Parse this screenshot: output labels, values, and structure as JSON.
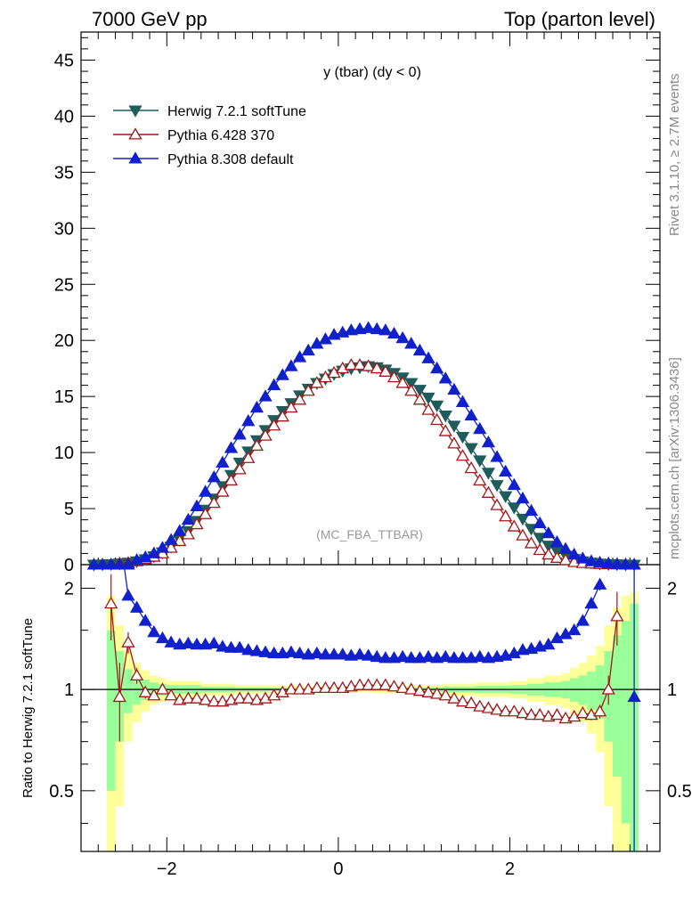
{
  "header": {
    "left": "7000 GeV pp",
    "right": "Top (parton level)"
  },
  "side_labels": {
    "rivet": "Rivet 3.1.10, ≥ 2.7M events",
    "mcplots": "mcplots.cern.ch [arXiv:1306.3436]"
  },
  "chart_data": {
    "type": "line",
    "title": "y (tbar) (dy < 0)",
    "annotation": "(MC_FBA_TTBAR)",
    "xlim": [
      -3.0,
      3.75
    ],
    "xticks": [
      -2,
      0,
      2
    ],
    "xtick_labels": [
      "−2",
      "0",
      "2"
    ],
    "main": {
      "ylim": [
        0,
        47.5
      ],
      "yticks": [
        0,
        5,
        10,
        15,
        20,
        25,
        30,
        35,
        40,
        45
      ],
      "ytick_labels": [
        "0",
        "5",
        "10",
        "15",
        "20",
        "25",
        "30",
        "35",
        "40",
        "45"
      ]
    },
    "ratio": {
      "ylabel": "Ratio to Herwig 7.2.1 softTune",
      "ylim": [
        0.33,
        2.35
      ],
      "log": true,
      "yticks": [
        0.5,
        1,
        2
      ],
      "ytick_labels": [
        "0.5",
        "1",
        "2"
      ],
      "band_edges": [
        -2.7,
        -2.6,
        -2.5,
        -2.4,
        -2.3,
        -2.2,
        -2.1,
        -2.0,
        -1.6,
        -1.2,
        -0.8,
        -0.4,
        0.0,
        0.4,
        0.8,
        1.2,
        1.6,
        2.0,
        2.2,
        2.4,
        2.6,
        2.7,
        2.8,
        2.9,
        3.0,
        3.1,
        3.2,
        3.3,
        3.4,
        3.5
      ],
      "band_inner": [
        0.5,
        0.3,
        0.15,
        0.1,
        0.07,
        0.05,
        0.04,
        0.03,
        0.02,
        0.015,
        0.012,
        0.01,
        0.01,
        0.012,
        0.015,
        0.02,
        0.025,
        0.03,
        0.04,
        0.05,
        0.06,
        0.08,
        0.1,
        0.13,
        0.18,
        0.3,
        0.45,
        0.6,
        0.8
      ],
      "band_outer": [
        0.9,
        0.55,
        0.3,
        0.2,
        0.14,
        0.1,
        0.08,
        0.06,
        0.04,
        0.03,
        0.025,
        0.02,
        0.02,
        0.025,
        0.03,
        0.04,
        0.05,
        0.06,
        0.08,
        0.1,
        0.12,
        0.16,
        0.2,
        0.26,
        0.35,
        0.55,
        0.75,
        0.9,
        0.95
      ]
    },
    "series": [
      {
        "name": "Herwig 7.2.1 softTune",
        "color": "#1f5c5c",
        "marker": "triangle-down-filled",
        "x": [
          -2.85,
          -2.75,
          -2.65,
          -2.55,
          -2.45,
          -2.35,
          -2.25,
          -2.15,
          -2.05,
          -1.95,
          -1.85,
          -1.75,
          -1.65,
          -1.55,
          -1.45,
          -1.35,
          -1.25,
          -1.15,
          -1.05,
          -0.95,
          -0.85,
          -0.75,
          -0.65,
          -0.55,
          -0.45,
          -0.35,
          -0.25,
          -0.15,
          -0.05,
          0.05,
          0.15,
          0.25,
          0.35,
          0.45,
          0.55,
          0.65,
          0.75,
          0.85,
          0.95,
          1.05,
          1.15,
          1.25,
          1.35,
          1.45,
          1.55,
          1.65,
          1.75,
          1.85,
          1.95,
          2.05,
          2.15,
          2.25,
          2.35,
          2.45,
          2.55,
          2.65,
          2.75,
          2.85,
          2.95,
          3.05,
          3.15,
          3.25,
          3.35,
          3.45
        ],
        "y": [
          0.0,
          0.02,
          0.05,
          0.1,
          0.18,
          0.3,
          0.48,
          0.74,
          1.1,
          1.6,
          2.2,
          3.0,
          3.9,
          4.9,
          5.9,
          7.0,
          8.0,
          9.1,
          10.1,
          11.1,
          12.0,
          12.9,
          13.7,
          14.4,
          15.1,
          15.7,
          16.2,
          16.6,
          17.0,
          17.3,
          17.5,
          17.6,
          17.7,
          17.6,
          17.4,
          17.1,
          16.7,
          16.2,
          15.6,
          14.9,
          14.2,
          13.3,
          12.4,
          11.4,
          10.4,
          9.3,
          8.2,
          7.1,
          6.1,
          5.1,
          4.1,
          3.2,
          2.4,
          1.7,
          1.2,
          0.8,
          0.5,
          0.3,
          0.18,
          0.1,
          0.05,
          0.03,
          0.01,
          0.0
        ]
      },
      {
        "name": "Pythia 6.428 370",
        "color": "#a01818",
        "marker": "triangle-up-open",
        "x": [
          -2.85,
          -2.75,
          -2.65,
          -2.55,
          -2.45,
          -2.35,
          -2.25,
          -2.15,
          -2.05,
          -1.95,
          -1.85,
          -1.75,
          -1.65,
          -1.55,
          -1.45,
          -1.35,
          -1.25,
          -1.15,
          -1.05,
          -0.95,
          -0.85,
          -0.75,
          -0.65,
          -0.55,
          -0.45,
          -0.35,
          -0.25,
          -0.15,
          -0.05,
          0.05,
          0.15,
          0.25,
          0.35,
          0.45,
          0.55,
          0.65,
          0.75,
          0.85,
          0.95,
          1.05,
          1.15,
          1.25,
          1.35,
          1.45,
          1.55,
          1.65,
          1.75,
          1.85,
          1.95,
          2.05,
          2.15,
          2.25,
          2.35,
          2.45,
          2.55,
          2.65,
          2.75,
          2.85,
          2.95,
          3.05,
          3.15,
          3.25,
          3.35,
          3.45
        ],
        "y": [
          0.0,
          0.0,
          0.0,
          0.1,
          0.15,
          0.3,
          0.5,
          0.7,
          1.0,
          1.5,
          2.1,
          2.7,
          3.6,
          4.5,
          5.5,
          6.5,
          7.5,
          8.5,
          9.5,
          10.6,
          11.5,
          12.4,
          13.2,
          14.0,
          14.7,
          15.5,
          16.2,
          16.7,
          17.1,
          17.5,
          17.8,
          17.8,
          17.7,
          17.5,
          17.2,
          16.7,
          16.2,
          15.5,
          14.7,
          13.8,
          12.9,
          11.9,
          10.8,
          9.7,
          8.6,
          7.5,
          6.4,
          5.3,
          4.3,
          3.4,
          2.6,
          1.9,
          1.3,
          0.9,
          0.6,
          0.4,
          0.23,
          0.14,
          0.09,
          0.05,
          0.03,
          0.02,
          0.01,
          0.0
        ]
      },
      {
        "name": "Pythia 8.308 default",
        "color": "#1020cc",
        "marker": "triangle-up-filled",
        "x": [
          -2.85,
          -2.75,
          -2.65,
          -2.55,
          -2.45,
          -2.35,
          -2.25,
          -2.15,
          -2.05,
          -1.95,
          -1.85,
          -1.75,
          -1.65,
          -1.55,
          -1.45,
          -1.35,
          -1.25,
          -1.15,
          -1.05,
          -0.95,
          -0.85,
          -0.75,
          -0.65,
          -0.55,
          -0.45,
          -0.35,
          -0.25,
          -0.15,
          -0.05,
          0.05,
          0.15,
          0.25,
          0.35,
          0.45,
          0.55,
          0.65,
          0.75,
          0.85,
          0.95,
          1.05,
          1.15,
          1.25,
          1.35,
          1.45,
          1.55,
          1.65,
          1.75,
          1.85,
          1.95,
          2.05,
          2.15,
          2.25,
          2.35,
          2.45,
          2.55,
          2.65,
          2.75,
          2.85,
          2.95,
          3.05,
          3.15,
          3.25,
          3.35,
          3.45
        ],
        "y": [
          0.0,
          0.0,
          0.0,
          0.0,
          0.0,
          0.4,
          0.65,
          1.0,
          1.5,
          2.2,
          3.0,
          4.0,
          5.2,
          6.5,
          7.8,
          9.1,
          10.4,
          11.6,
          12.8,
          14.0,
          15.0,
          16.0,
          16.9,
          17.7,
          18.5,
          19.1,
          19.7,
          20.1,
          20.5,
          20.7,
          20.9,
          21.0,
          21.1,
          21.0,
          20.9,
          20.6,
          20.2,
          19.7,
          19.1,
          18.4,
          17.5,
          16.6,
          15.6,
          14.5,
          13.3,
          12.1,
          10.9,
          9.6,
          8.3,
          7.1,
          5.9,
          4.8,
          3.7,
          2.8,
          2.0,
          1.4,
          0.9,
          0.55,
          0.3,
          0.18,
          0.1,
          0.05,
          0.02,
          0.0
        ]
      }
    ],
    "ratio_series": [
      {
        "name": "Pythia 6.428 370",
        "x": [
          -2.65,
          -2.55,
          -2.45,
          -2.35,
          -2.25,
          -2.15,
          -2.05,
          -1.95,
          -1.85,
          -1.75,
          -1.65,
          -1.55,
          -1.45,
          -1.35,
          -1.25,
          -1.15,
          -1.05,
          -0.95,
          -0.85,
          -0.75,
          -0.65,
          -0.55,
          -0.45,
          -0.35,
          -0.25,
          -0.15,
          -0.05,
          0.05,
          0.15,
          0.25,
          0.35,
          0.45,
          0.55,
          0.65,
          0.75,
          0.85,
          0.95,
          1.05,
          1.15,
          1.25,
          1.35,
          1.45,
          1.55,
          1.65,
          1.75,
          1.85,
          1.95,
          2.05,
          2.15,
          2.25,
          2.35,
          2.45,
          2.55,
          2.65,
          2.75,
          2.85,
          2.95,
          3.05,
          3.15,
          3.25
        ],
        "y": [
          1.8,
          0.95,
          1.38,
          1.1,
          0.98,
          0.96,
          1.0,
          0.96,
          0.93,
          0.94,
          0.94,
          0.93,
          0.92,
          0.92,
          0.93,
          0.94,
          0.94,
          0.93,
          0.94,
          0.96,
          0.98,
          1.0,
          1.0,
          1.0,
          1.01,
          1.01,
          1.01,
          1.01,
          1.02,
          1.03,
          1.03,
          1.03,
          1.03,
          1.02,
          1.01,
          1.0,
          0.99,
          0.98,
          0.97,
          0.96,
          0.94,
          0.92,
          0.91,
          0.89,
          0.88,
          0.87,
          0.86,
          0.86,
          0.85,
          0.84,
          0.84,
          0.83,
          0.84,
          0.82,
          0.83,
          0.85,
          0.84,
          0.86,
          1.0,
          1.65
        ],
        "err": [
          0.4,
          0.25,
          0.1,
          0.06,
          0.04,
          0.03,
          0.02,
          0.015,
          0.012,
          0.01,
          0.01,
          0.01,
          0.01,
          0.01,
          0.01,
          0.01,
          0.01,
          0.01,
          0.01,
          0.01,
          0.01,
          0.01,
          0.01,
          0.01,
          0.01,
          0.01,
          0.01,
          0.01,
          0.01,
          0.01,
          0.01,
          0.01,
          0.01,
          0.01,
          0.01,
          0.01,
          0.01,
          0.01,
          0.01,
          0.01,
          0.01,
          0.01,
          0.01,
          0.01,
          0.01,
          0.01,
          0.01,
          0.01,
          0.01,
          0.012,
          0.015,
          0.015,
          0.02,
          0.02,
          0.025,
          0.03,
          0.03,
          0.04,
          0.1,
          0.3
        ]
      },
      {
        "name": "Pythia 8.308 default",
        "x": [
          -2.45,
          -2.35,
          -2.25,
          -2.15,
          -2.05,
          -1.95,
          -1.85,
          -1.75,
          -1.65,
          -1.55,
          -1.45,
          -1.35,
          -1.25,
          -1.15,
          -1.05,
          -0.95,
          -0.85,
          -0.75,
          -0.65,
          -0.55,
          -0.45,
          -0.35,
          -0.25,
          -0.15,
          -0.05,
          0.05,
          0.15,
          0.25,
          0.35,
          0.45,
          0.55,
          0.65,
          0.75,
          0.85,
          0.95,
          1.05,
          1.15,
          1.25,
          1.35,
          1.45,
          1.55,
          1.65,
          1.75,
          1.85,
          1.95,
          2.05,
          2.15,
          2.25,
          2.35,
          2.45,
          2.55,
          2.65,
          2.75,
          2.85,
          2.95,
          3.05
        ],
        "y": [
          1.9,
          1.75,
          1.6,
          1.48,
          1.42,
          1.38,
          1.36,
          1.37,
          1.36,
          1.36,
          1.37,
          1.34,
          1.33,
          1.33,
          1.31,
          1.3,
          1.29,
          1.28,
          1.28,
          1.29,
          1.28,
          1.27,
          1.28,
          1.27,
          1.27,
          1.27,
          1.26,
          1.27,
          1.26,
          1.25,
          1.24,
          1.24,
          1.25,
          1.24,
          1.24,
          1.25,
          1.24,
          1.25,
          1.24,
          1.24,
          1.24,
          1.25,
          1.24,
          1.25,
          1.26,
          1.28,
          1.31,
          1.32,
          1.34,
          1.36,
          1.42,
          1.46,
          1.5,
          1.6,
          1.8,
          2.05
        ],
        "err": [
          0.05,
          0.04,
          0.03,
          0.02,
          0.02,
          0.015,
          0.012,
          0.01,
          0.01,
          0.01,
          0.01,
          0.01,
          0.01,
          0.01,
          0.01,
          0.01,
          0.01,
          0.01,
          0.01,
          0.01,
          0.01,
          0.01,
          0.01,
          0.01,
          0.01,
          0.01,
          0.01,
          0.01,
          0.01,
          0.01,
          0.01,
          0.01,
          0.01,
          0.01,
          0.01,
          0.01,
          0.01,
          0.01,
          0.01,
          0.01,
          0.01,
          0.01,
          0.01,
          0.01,
          0.012,
          0.015,
          0.015,
          0.02,
          0.02,
          0.025,
          0.03,
          0.03,
          0.04,
          0.05,
          0.06,
          0.08
        ]
      }
    ],
    "ratio_outliers": [
      {
        "series": "Pythia 8.308 default",
        "x": 3.45,
        "y": 0.95
      }
    ]
  }
}
